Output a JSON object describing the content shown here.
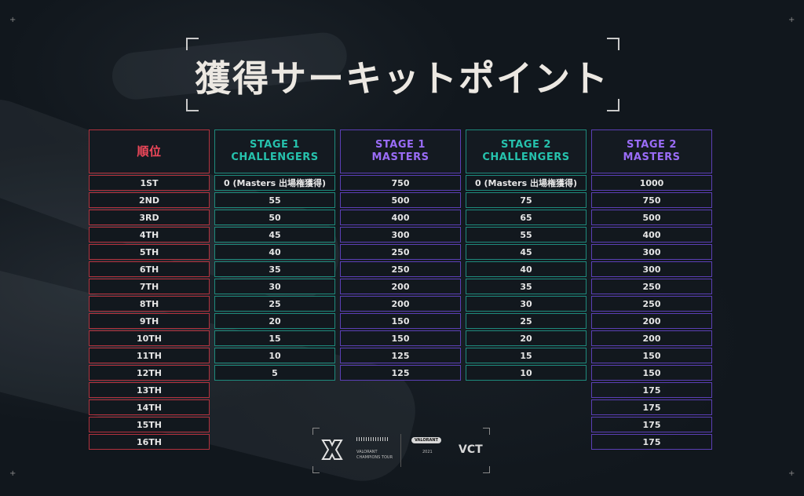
{
  "title": "獲得サーキットポイント",
  "colors": {
    "red": "#f0485a",
    "teal": "#26c2ad",
    "purple": "#9a6cf7"
  },
  "columns": [
    {
      "header": "順位",
      "color": "red",
      "values": [
        "1ST",
        "2ND",
        "3RD",
        "4TH",
        "5TH",
        "6TH",
        "7TH",
        "8TH",
        "9TH",
        "10TH",
        "11TH",
        "12TH",
        "13TH",
        "14TH",
        "15TH",
        "16TH"
      ]
    },
    {
      "header_line1": "STAGE 1",
      "header_line2": "CHALLENGERS",
      "color": "teal",
      "values": [
        "0 (Masters 出場権獲得)",
        "55",
        "50",
        "45",
        "40",
        "35",
        "30",
        "25",
        "20",
        "15",
        "10",
        "5"
      ]
    },
    {
      "header_line1": "STAGE 1",
      "header_line2": "MASTERS",
      "color": "purple",
      "values": [
        "750",
        "500",
        "400",
        "300",
        "250",
        "250",
        "200",
        "200",
        "150",
        "150",
        "125",
        "125"
      ]
    },
    {
      "header_line1": "STAGE 2",
      "header_line2": "CHALLENGERS",
      "color": "teal",
      "values": [
        "0 (Masters 出場権獲得)",
        "75",
        "65",
        "55",
        "45",
        "40",
        "35",
        "30",
        "25",
        "20",
        "15",
        "10"
      ]
    },
    {
      "header_line1": "STAGE 2",
      "header_line2": "MASTERS",
      "color": "purple",
      "values": [
        "1000",
        "750",
        "500",
        "400",
        "300",
        "300",
        "250",
        "250",
        "200",
        "200",
        "150",
        "150"
      ],
      "extra_values": [
        "175",
        "175",
        "175",
        "175"
      ]
    }
  ],
  "footer": {
    "valorant_badge": "VALORANT",
    "small_text_1": "VALORANT",
    "small_text_2": "CHAMPIONS TOUR",
    "small_text_3": "2021",
    "vct_mark": "VCT"
  }
}
